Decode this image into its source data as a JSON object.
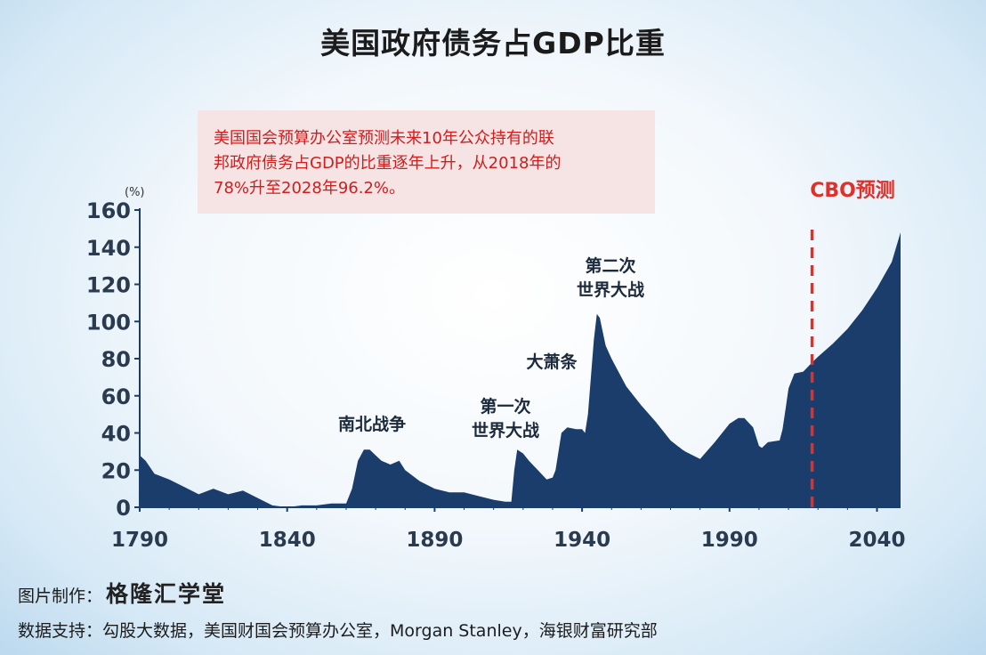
{
  "title": "美国政府债务占GDP比重",
  "note": {
    "lines": [
      "美国国会预算办公室预测未来10年公众持有的联",
      "邦政府债务占GDP的比重逐年上升，从2018年的",
      "78%升至2028年96.2%。"
    ]
  },
  "footer": {
    "made_by_label": "图片制作：",
    "made_by_name": "格隆汇学堂",
    "source_label": "数据支持：",
    "source_text": "勾股大数据，美国财国会预算办公室，Morgan Stanley，海银财富研究部"
  },
  "chart_data": {
    "type": "area",
    "title": "美国政府债务占GDP比重",
    "ylabel": "(%)",
    "xlabel": "",
    "xlim": [
      1790,
      2048
    ],
    "ylim": [
      0,
      160
    ],
    "x_ticks": [
      1790,
      1840,
      1890,
      1940,
      1990,
      2040
    ],
    "y_ticks": [
      0,
      20,
      40,
      60,
      80,
      100,
      120,
      140,
      160
    ],
    "fill_color": "#1a3d6b",
    "forecast_line": {
      "x": 2018,
      "label": "CBO预测",
      "color": "#e0302a"
    },
    "annotations": [
      {
        "text": "南北战争",
        "x": 1868,
        "y": 42
      },
      {
        "text": "第一次\n世界大战",
        "x": 1918,
        "y": 50
      },
      {
        "text": "大萧条",
        "x": 1933,
        "y": 78
      },
      {
        "text": "第二次\n世界大战",
        "x": 1946,
        "y": 120
      }
    ],
    "series": [
      {
        "x": [
          1790,
          1792,
          1795,
          1800,
          1805,
          1810,
          1815,
          1820,
          1825,
          1830,
          1835,
          1840,
          1845,
          1850,
          1855,
          1860,
          1862,
          1864,
          1866,
          1868,
          1870,
          1872,
          1875,
          1878,
          1880,
          1885,
          1890,
          1895,
          1900,
          1905,
          1910,
          1914,
          1916,
          1917,
          1918,
          1919,
          1920,
          1922,
          1925,
          1928,
          1930,
          1931,
          1932,
          1933,
          1935,
          1938,
          1940,
          1941,
          1942,
          1943,
          1944,
          1945,
          1946,
          1948,
          1950,
          1955,
          1960,
          1965,
          1970,
          1974,
          1975,
          1980,
          1985,
          1990,
          1993,
          1995,
          1998,
          2000,
          2001,
          2003,
          2007,
          2008,
          2009,
          2010,
          2012,
          2015,
          2018,
          2020,
          2025,
          2030,
          2035,
          2040,
          2045,
          2048
        ],
        "y": [
          28,
          25,
          18,
          15,
          11,
          7,
          10,
          7,
          9,
          5,
          1,
          0,
          1,
          1,
          2,
          2,
          10,
          25,
          31,
          31,
          28,
          25,
          23,
          25,
          20,
          14,
          10,
          8,
          8,
          6,
          4,
          3,
          3,
          20,
          31,
          30,
          29,
          25,
          20,
          15,
          16,
          20,
          30,
          40,
          43,
          42,
          42,
          40,
          50,
          70,
          90,
          104,
          102,
          87,
          80,
          65,
          55,
          46,
          36,
          31,
          30,
          26,
          35,
          45,
          48,
          48,
          43,
          33,
          32,
          35,
          36,
          42,
          53,
          64,
          72,
          73,
          78,
          81,
          88,
          96,
          106,
          118,
          132,
          148
        ]
      }
    ]
  }
}
